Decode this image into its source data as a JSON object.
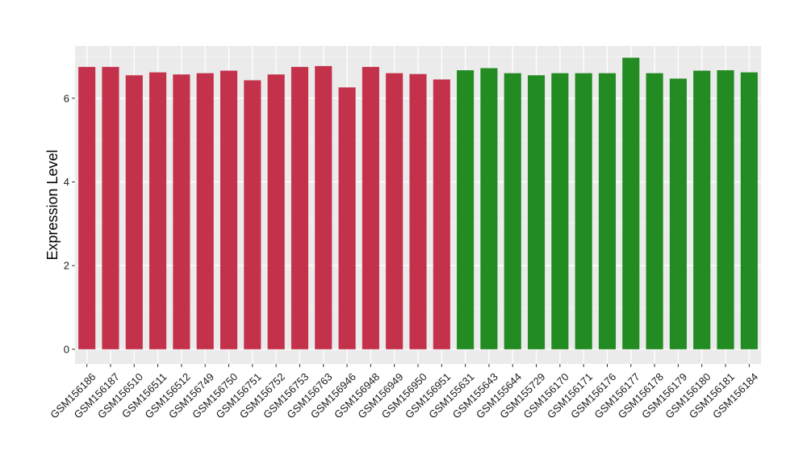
{
  "chart_data": {
    "type": "bar",
    "title": "",
    "xlabel": "",
    "ylabel": "Expression Level",
    "ylim": [
      -0.35,
      7.25
    ],
    "yticks": [
      0,
      2,
      4,
      6
    ],
    "grid": true,
    "legend": "none",
    "background": "#ebebeb",
    "colors": {
      "group1": "#c4314b",
      "group2": "#228b22",
      "grid_major": "#ffffff",
      "grid_minor": "#f5f5f5"
    },
    "categories": [
      "GSM156186",
      "GSM156187",
      "GSM156510",
      "GSM156511",
      "GSM156512",
      "GSM156749",
      "GSM156750",
      "GSM156751",
      "GSM156752",
      "GSM156753",
      "GSM156763",
      "GSM156946",
      "GSM156948",
      "GSM156949",
      "GSM156950",
      "GSM156951",
      "GSM155631",
      "GSM155643",
      "GSM155644",
      "GSM155729",
      "GSM156170",
      "GSM156171",
      "GSM156176",
      "GSM156177",
      "GSM156178",
      "GSM156179",
      "GSM156180",
      "GSM156181",
      "GSM156184"
    ],
    "values": [
      6.75,
      6.75,
      6.55,
      6.62,
      6.57,
      6.6,
      6.66,
      6.43,
      6.57,
      6.75,
      6.77,
      6.26,
      6.75,
      6.6,
      6.58,
      6.45,
      6.67,
      6.72,
      6.6,
      6.55,
      6.6,
      6.6,
      6.6,
      6.97,
      6.6,
      6.47,
      6.66,
      6.67,
      6.62
    ],
    "groups": [
      1,
      1,
      1,
      1,
      1,
      1,
      1,
      1,
      1,
      1,
      1,
      1,
      1,
      1,
      1,
      1,
      2,
      2,
      2,
      2,
      2,
      2,
      2,
      2,
      2,
      2,
      2,
      2,
      2
    ]
  }
}
